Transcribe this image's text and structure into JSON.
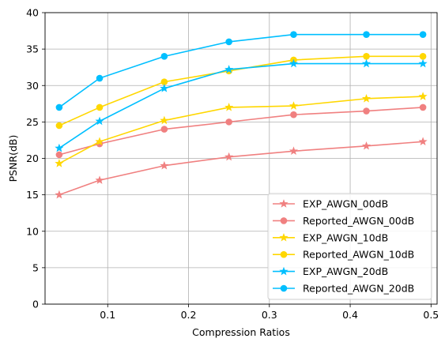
{
  "chart_data": {
    "type": "line",
    "title": "",
    "xlabel": "Compression Ratios",
    "ylabel": "PSNR(dB)",
    "xlim": [
      0.0225,
      0.5075
    ],
    "ylim": [
      0,
      40
    ],
    "x_ticks": [
      0.1,
      0.2,
      0.3,
      0.4,
      0.5
    ],
    "x_tick_labels": [
      "0.1",
      "0.2",
      "0.3",
      "0.4",
      "0.5"
    ],
    "y_ticks": [
      0,
      5,
      10,
      15,
      20,
      25,
      30,
      35,
      40
    ],
    "y_tick_labels": [
      "0",
      "5",
      "10",
      "15",
      "20",
      "25",
      "30",
      "35",
      "40"
    ],
    "grid": true,
    "legend_position": "bottom-right",
    "x": [
      0.04,
      0.09,
      0.17,
      0.25,
      0.33,
      0.42,
      0.49
    ],
    "series": [
      {
        "name": "EXP_AWGN_00dB",
        "color": "#f08080",
        "marker": "star",
        "values": [
          15.0,
          17.0,
          19.0,
          20.2,
          21.0,
          21.7,
          22.3
        ]
      },
      {
        "name": "Reported_AWGN_00dB",
        "color": "#f08080",
        "marker": "circle",
        "values": [
          20.5,
          22.0,
          24.0,
          25.0,
          26.0,
          26.5,
          27.0
        ]
      },
      {
        "name": "EXP_AWGN_10dB",
        "color": "#ffd700",
        "marker": "star",
        "values": [
          19.3,
          22.3,
          25.2,
          27.0,
          27.2,
          28.2,
          28.5
        ]
      },
      {
        "name": "Reported_AWGN_10dB",
        "color": "#ffd700",
        "marker": "circle",
        "values": [
          24.5,
          27.0,
          30.5,
          32.0,
          33.5,
          34.0,
          34.0
        ]
      },
      {
        "name": "EXP_AWGN_20dB",
        "color": "#00bfff",
        "marker": "star",
        "values": [
          21.4,
          25.1,
          29.6,
          32.2,
          33.0,
          33.0,
          33.0
        ]
      },
      {
        "name": "Reported_AWGN_20dB",
        "color": "#00bfff",
        "marker": "circle",
        "values": [
          27.0,
          31.0,
          34.0,
          36.0,
          37.0,
          37.0,
          37.0
        ]
      }
    ]
  }
}
